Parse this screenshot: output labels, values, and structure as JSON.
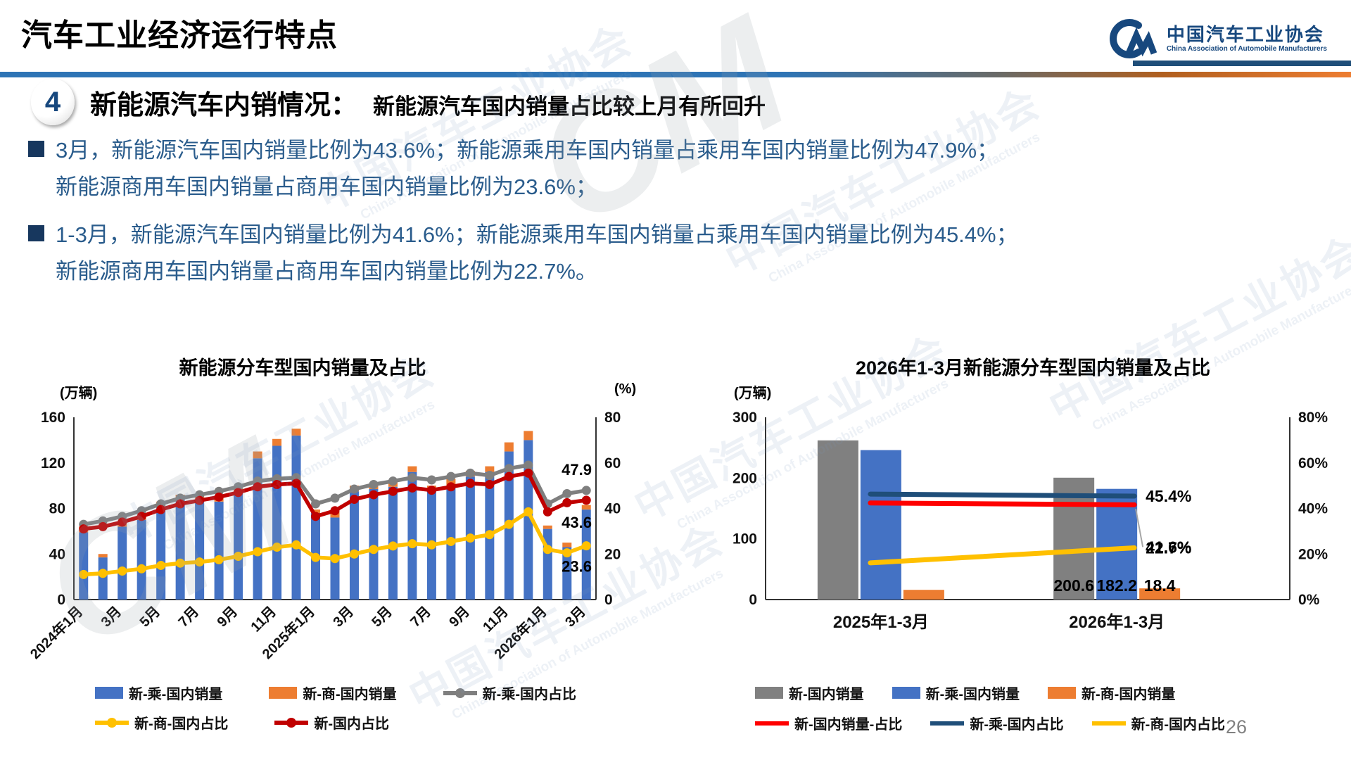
{
  "header": {
    "title": "汽车工业经济运行特点",
    "logo": {
      "name_cn": "中国汽车工业协会",
      "name_en": "China Association of Automobile Manufacturers"
    }
  },
  "section": {
    "number": "4",
    "heading": "新能源汽车内销情况：",
    "subheading": "新能源汽车国内销量占比较上月有所回升"
  },
  "bullets": [
    {
      "lines": [
        "3月，新能源汽车国内销量比例为43.6%；新能源乘用车国内销量占乘用车国内销量比例为47.9%；",
        "新能源商用车国内销量占商用车国内销量比例为23.6%；"
      ]
    },
    {
      "lines": [
        "1-3月，新能源汽车国内销量比例为41.6%；新能源乘用车国内销量占乘用车国内销量比例为45.4%；",
        "新能源商用车国内销量占商用车国内销量比例为22.7%。"
      ]
    }
  ],
  "watermark": {
    "cn": "中国汽车工业协会",
    "en": "China Association of Automobile Manufacturers",
    "mark": "CM"
  },
  "page_number": "26",
  "chart_data": [
    {
      "type": "bar",
      "subtype": "stacked-bars-with-lines",
      "title": "新能源分车型国内销量及占比",
      "left_axis_title": "(万辆)",
      "right_axis_title": "(%)",
      "left_ylim": [
        0,
        160
      ],
      "left_ticks": [
        0,
        40,
        80,
        120,
        160
      ],
      "right_ylim": [
        0,
        80
      ],
      "right_ticks": [
        0,
        20,
        40,
        60,
        80
      ],
      "right_tick_suffix": "",
      "grid": false,
      "categories": [
        "2024年1月",
        "2024年2月",
        "2024年3月",
        "2024年4月",
        "2024年5月",
        "2024年6月",
        "2024年7月",
        "2024年8月",
        "2024年9月",
        "2024年10月",
        "2024年11月",
        "2024年12月",
        "2025年1月",
        "2025年2月",
        "2025年3月",
        "2025年4月",
        "2025年5月",
        "2025年6月",
        "2025年7月",
        "2025年8月",
        "2025年9月",
        "2025年10月",
        "2025年11月",
        "2025年12月",
        "2026年1月",
        "2026年2月",
        "2026年3月"
      ],
      "x_tick_labels": [
        "2024年1月",
        "3月",
        "5月",
        "7月",
        "9月",
        "11月",
        "2025年1月",
        "3月",
        "5月",
        "7月",
        "9月",
        "11月",
        "2026年1月",
        "3月"
      ],
      "x_tick_every": 2,
      "bar_series": [
        {
          "name": "新-乘-国内销量",
          "color": "#4472C4",
          "values": [
            59,
            37,
            64,
            70,
            82,
            88,
            87,
            86,
            95,
            124,
            135,
            144,
            76,
            72,
            95,
            97,
            99,
            112,
            96,
            100,
            108,
            112,
            130,
            140,
            62,
            46,
            79
          ]
        },
        {
          "name": "新-商-国内销量",
          "color": "#ED7D31",
          "values": [
            5,
            3,
            5,
            4,
            4,
            4,
            5,
            3,
            5,
            6,
            6,
            6,
            3,
            5,
            5,
            4,
            6,
            5,
            4,
            6,
            5,
            5,
            8,
            8,
            3,
            4,
            4
          ]
        }
      ],
      "line_series": [
        {
          "name": "新-乘-国内占比",
          "color": "#7F7F7F",
          "axis": "right",
          "end_label": "47.9",
          "values": [
            33,
            34.5,
            36.5,
            39,
            42,
            44.5,
            46,
            47.5,
            49.5,
            52,
            53,
            53.5,
            42,
            44.5,
            48.5,
            50.5,
            52,
            53.5,
            52.5,
            54,
            55.5,
            54.5,
            57.5,
            59,
            42,
            46.5,
            47.9
          ]
        },
        {
          "name": "新-商-国内占比",
          "color": "#FFC000",
          "axis": "right",
          "end_label": "23.6",
          "values": [
            11,
            11.5,
            12.5,
            13.5,
            15,
            16,
            16.5,
            17.5,
            19,
            21,
            23,
            24,
            18.5,
            18,
            20,
            22,
            23.5,
            24.5,
            24,
            25.5,
            27,
            28.5,
            33,
            38.5,
            22,
            20.5,
            23.6
          ]
        },
        {
          "name": "新-国内占比",
          "color": "#C00000",
          "axis": "right",
          "end_label": "43.6",
          "values": [
            31,
            32,
            34,
            36.5,
            39.5,
            42,
            43.5,
            45,
            47,
            49.5,
            50.5,
            51,
            36.5,
            39,
            44,
            46,
            47.5,
            49,
            48,
            49.5,
            51,
            50.5,
            54,
            55.5,
            38.5,
            42.5,
            43.6
          ]
        }
      ],
      "legend": [
        [
          {
            "swatch": "rect",
            "color": "#4472C4",
            "label": "新-乘-国内销量"
          },
          {
            "swatch": "rect",
            "color": "#ED7D31",
            "label": "新-商-国内销量"
          },
          {
            "swatch": "line-dot",
            "color": "#7F7F7F",
            "label": "新-乘-国内占比"
          }
        ],
        [
          {
            "swatch": "line-dot",
            "color": "#FFC000",
            "label": "新-商-国内占比"
          },
          {
            "swatch": "line-dot",
            "color": "#C00000",
            "label": "新-国内占比"
          }
        ]
      ]
    },
    {
      "type": "bar",
      "subtype": "grouped-bars-with-lines",
      "title": "2026年1-3月新能源分车型国内销量及占比",
      "left_axis_title": "(万辆)",
      "right_axis_title": "",
      "left_ylim": [
        0,
        300
      ],
      "left_ticks": [
        0,
        100,
        200,
        300
      ],
      "right_ylim": [
        0,
        80
      ],
      "right_ticks": [
        0,
        20,
        40,
        60,
        80
      ],
      "right_tick_suffix": "%",
      "grid": false,
      "categories": [
        "2025年1-3月",
        "2026年1-3月"
      ],
      "bar_series": [
        {
          "name": "新-国内销量",
          "color": "#808080",
          "values": [
            262,
            200.6
          ],
          "labels": [
            "",
            "200.6"
          ]
        },
        {
          "name": "新-乘-国内销量",
          "color": "#4472C4",
          "values": [
            246,
            182.2
          ],
          "labels": [
            "",
            "182.2"
          ]
        },
        {
          "name": "新-商-国内销量",
          "color": "#ED7D31",
          "values": [
            16,
            18.4
          ],
          "labels": [
            "",
            "18.4"
          ]
        }
      ],
      "line_series": [
        {
          "name": "新-国内销量-占比",
          "color": "#FF0000",
          "axis": "right",
          "end_label": "41.6%",
          "values": [
            42.4,
            41.6
          ]
        },
        {
          "name": "新-乘-国内占比",
          "color": "#1F4E79",
          "axis": "right",
          "end_label": "45.4%",
          "values": [
            46.3,
            45.4
          ]
        },
        {
          "name": "新-商-国内占比",
          "color": "#FFC000",
          "axis": "right",
          "end_label": "22.7%",
          "values": [
            16.1,
            22.7
          ]
        }
      ],
      "legend": [
        [
          {
            "swatch": "rect",
            "color": "#808080",
            "label": "新-国内销量"
          },
          {
            "swatch": "rect",
            "color": "#4472C4",
            "label": "新-乘-国内销量"
          },
          {
            "swatch": "rect",
            "color": "#ED7D31",
            "label": "新-商-国内销量"
          }
        ],
        [
          {
            "swatch": "line",
            "color": "#FF0000",
            "label": "新-国内销量-占比"
          },
          {
            "swatch": "line",
            "color": "#1F4E79",
            "label": "新-乘-国内占比"
          },
          {
            "swatch": "line",
            "color": "#FFC000",
            "label": "新-商-国内占比"
          }
        ]
      ]
    }
  ]
}
